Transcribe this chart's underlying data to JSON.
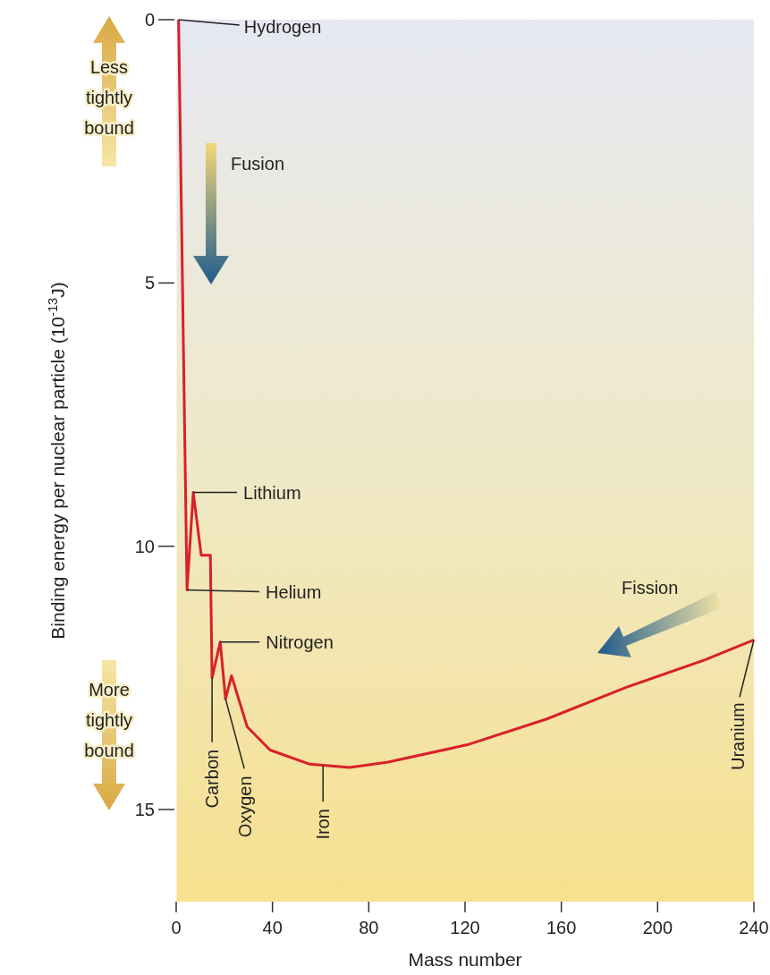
{
  "chart_data": {
    "type": "line",
    "xlabel": "Mass number",
    "ylabel": "Binding energy per nuclear particle (10$^{-13}$J)",
    "xlim": [
      0,
      240
    ],
    "xticks": [
      0,
      40,
      80,
      120,
      160,
      200,
      240
    ],
    "ylim": [
      16.75,
      0
    ],
    "yticks": [
      0,
      5,
      10,
      15
    ],
    "series": [
      {
        "color": "#d9202a",
        "x": [
          1,
          4.5,
          7.1,
          10.4,
          14.2,
          14.9,
          18.3,
          20.5,
          23,
          29.5,
          39,
          55.5,
          72,
          88,
          121,
          154,
          187,
          219.5,
          240
        ],
        "values": [
          0,
          10.83,
          8.98,
          10.17,
          10.17,
          12.5,
          11.82,
          12.9,
          12.46,
          13.43,
          13.87,
          14.14,
          14.2,
          14.1,
          13.77,
          13.28,
          12.68,
          12.16,
          11.78
        ]
      }
    ],
    "annotations": [
      {
        "text": "Hydrogen",
        "x": 1,
        "y": 0
      },
      {
        "text": "Lithium",
        "x": 7.1,
        "y": 8.98
      },
      {
        "text": "Helium",
        "x": 4.5,
        "y": 10.83
      },
      {
        "text": "Nitrogen",
        "x": 18.3,
        "y": 11.82
      },
      {
        "text": "Carbon",
        "x": 14.9,
        "y": 12.5
      },
      {
        "text": "Oxygen",
        "x": 20.5,
        "y": 12.9
      },
      {
        "text": "Iron",
        "x": 61,
        "y": 14.17
      },
      {
        "text": "Uranium",
        "x": 240,
        "y": 11.78
      },
      "Fusion",
      "Fission",
      "Less tightly bound",
      "More tightly bound"
    ]
  }
}
